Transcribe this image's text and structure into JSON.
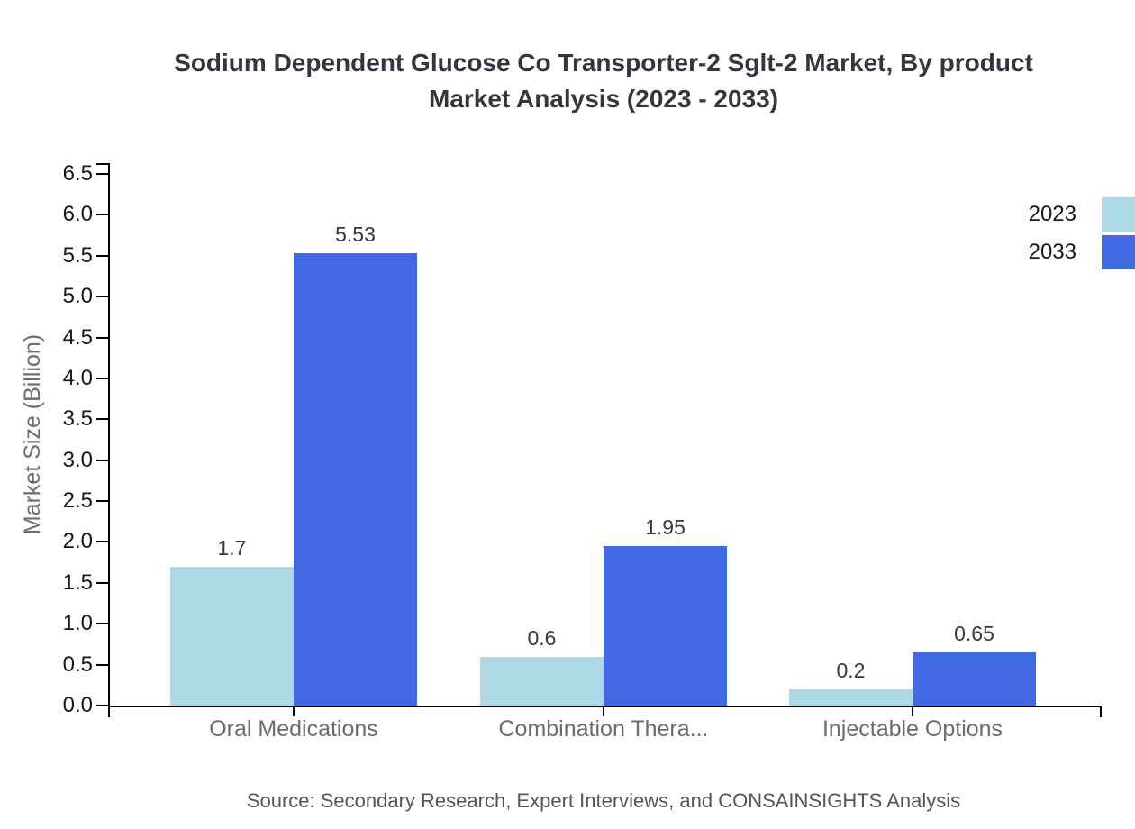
{
  "header": {
    "title_lines": [
      "Sodium Dependent Glucose Co Transporter-2 Sglt-2 Market, By product",
      "Market Analysis (2023 - 2033)"
    ]
  },
  "chart_data": {
    "type": "bar",
    "title": "Sodium Dependent Glucose Co Transporter-2 Sglt-2 Market, By product Market Analysis (2023 - 2033)",
    "categories": [
      "Oral Medications",
      "Combination Thera...",
      "Injectable Options"
    ],
    "series": [
      {
        "name": "2023",
        "color": "#ADD8E6",
        "values": [
          1.7,
          0.6,
          0.2
        ]
      },
      {
        "name": "2033",
        "color": "#4169E1",
        "values": [
          5.53,
          1.95,
          0.65
        ]
      }
    ],
    "xlabel": "",
    "ylabel": "Market Size (Billion)",
    "ylim": [
      0,
      6.5
    ],
    "ytick_step": 0.5,
    "grid": false,
    "legend_position": "top-right",
    "bar_value_labels": true
  },
  "footer": {
    "source": "Source: Secondary Research, Expert Interviews, and CONSAINSIGHTS Analysis"
  }
}
